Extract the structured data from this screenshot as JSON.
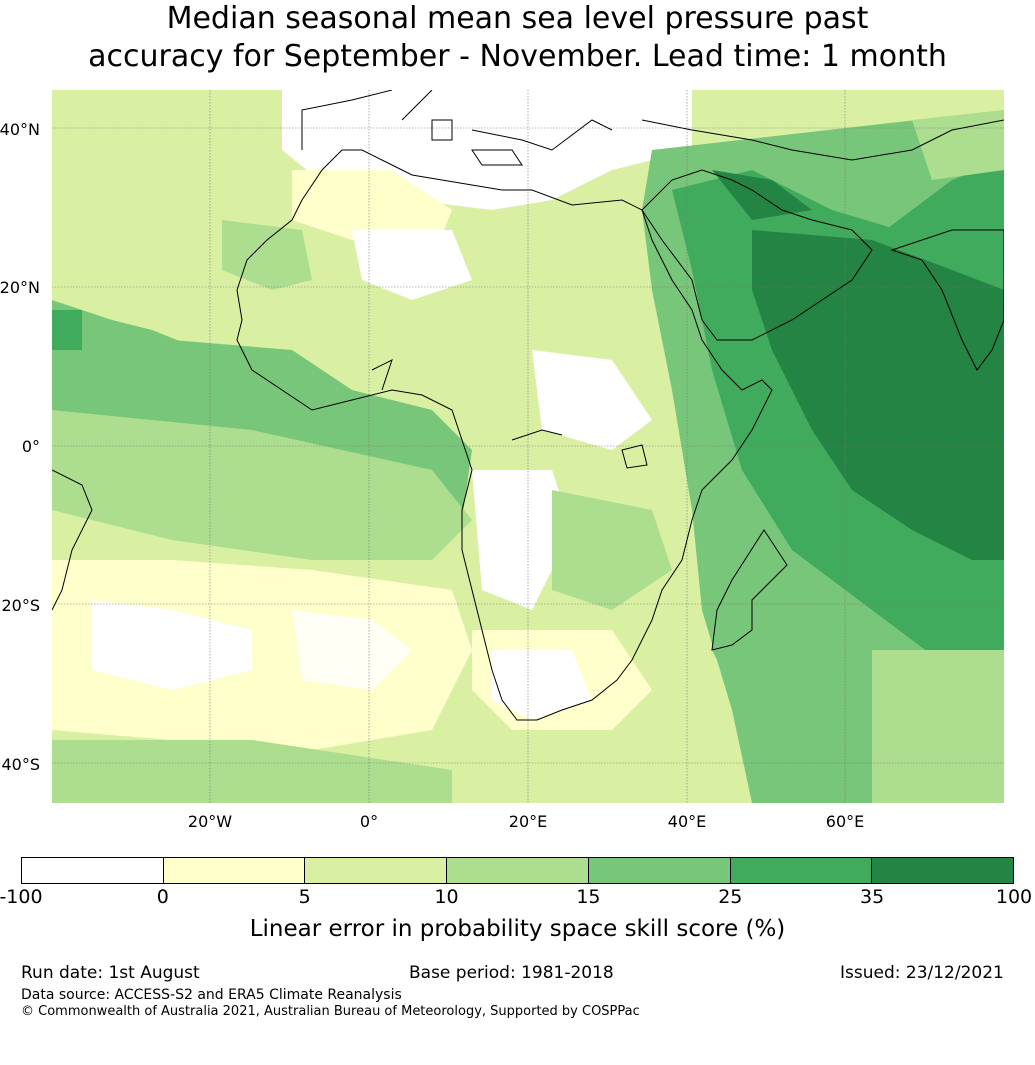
{
  "title_line1": "Median seasonal mean sea level pressure past",
  "title_line2": "accuracy for September - November. Lead time: 1 month",
  "lat_labels": [
    "40°N",
    "20°N",
    "0°",
    "20°S",
    "40°S"
  ],
  "lon_labels": [
    "20°W",
    "0°",
    "20°E",
    "40°E",
    "60°E"
  ],
  "colorbar": {
    "ticks": [
      "-100",
      "0",
      "5",
      "10",
      "15",
      "25",
      "35",
      "100"
    ],
    "colors": [
      "#ffffff",
      "#ffffcc",
      "#d9f0a3",
      "#addd8e",
      "#78c679",
      "#41ab5d",
      "#238443"
    ],
    "label": "Linear error in probability space skill score (%)"
  },
  "footer": {
    "run_date": "Run date: 1st August",
    "base_period": "Base period: 1981-2018",
    "issued": "Issued: 23/12/2021",
    "source": "Data source: ACCESS-S2 and ERA5 Climate Reanalysis",
    "copyright": "© Commonwealth of Australia 2021, Australian Bureau of Meteorology, Supported by COSPPac"
  }
}
